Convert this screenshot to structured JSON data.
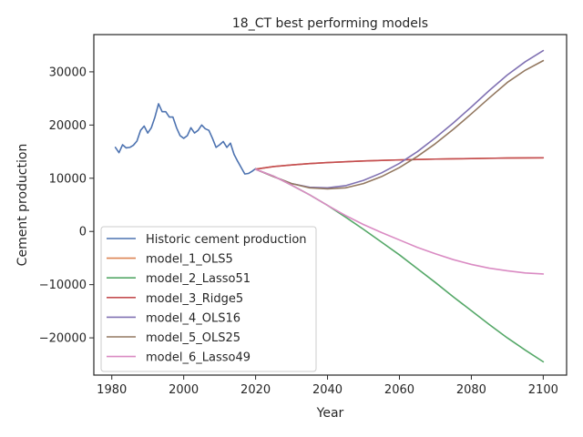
{
  "chart_data": {
    "type": "line",
    "title": "18_CT best performing models",
    "xlabel": "Year",
    "ylabel": "Cement production",
    "xlim": [
      1975,
      2106.5
    ],
    "ylim": [
      -27000,
      37000
    ],
    "xticks": [
      1980,
      2000,
      2020,
      2040,
      2060,
      2080,
      2100
    ],
    "yticks": [
      -20000,
      -10000,
      0,
      10000,
      20000,
      30000
    ],
    "xtick_labels": [
      "1980",
      "2000",
      "2020",
      "2040",
      "2060",
      "2080",
      "2100"
    ],
    "ytick_labels": [
      "−20000",
      "−10000",
      "0",
      "10000",
      "20000",
      "30000"
    ],
    "grid": false,
    "legend_position": "lower-left",
    "series": [
      {
        "name": "Historic cement production",
        "color": "#4c72b0",
        "x": [
          1981,
          1982,
          1983,
          1984,
          1985,
          1986,
          1987,
          1988,
          1989,
          1990,
          1991,
          1992,
          1993,
          1994,
          1995,
          1996,
          1997,
          1998,
          1999,
          2000,
          2001,
          2002,
          2003,
          2004,
          2005,
          2006,
          2007,
          2008,
          2009,
          2010,
          2011,
          2012,
          2013,
          2014,
          2015,
          2016,
          2017,
          2018,
          2019,
          2020
        ],
        "y": [
          15800,
          14800,
          16300,
          15700,
          15800,
          16200,
          17000,
          19000,
          19800,
          18500,
          19500,
          21500,
          24000,
          22500,
          22500,
          21500,
          21500,
          19500,
          18000,
          17500,
          18000,
          19500,
          18500,
          19000,
          20000,
          19300,
          19000,
          17500,
          15800,
          16300,
          16900,
          15800,
          16600,
          14500,
          13200,
          12000,
          10800,
          10900,
          11300,
          11800
        ]
      },
      {
        "name": "model_1_OLS5",
        "color": "#dd8452",
        "x": [
          2020,
          2025,
          2030,
          2035,
          2040,
          2045,
          2050,
          2055,
          2060,
          2065,
          2070,
          2075,
          2080,
          2085,
          2090,
          2095,
          2100
        ],
        "y": [
          11700,
          12200,
          12500,
          12750,
          12950,
          13100,
          13250,
          13350,
          13450,
          13530,
          13600,
          13650,
          13700,
          13750,
          13800,
          13830,
          13850
        ]
      },
      {
        "name": "model_2_Lasso51",
        "color": "#55a868",
        "x": [
          2020,
          2025,
          2030,
          2035,
          2040,
          2045,
          2050,
          2055,
          2060,
          2065,
          2070,
          2075,
          2080,
          2085,
          2090,
          2095,
          2100
        ],
        "y": [
          11700,
          10400,
          8700,
          6900,
          4900,
          2700,
          400,
          -2000,
          -4400,
          -7000,
          -9600,
          -12300,
          -14900,
          -17500,
          -20000,
          -22300,
          -24500
        ]
      },
      {
        "name": "model_3_Ridge5",
        "color": "#c44e52",
        "x": [
          2020,
          2025,
          2030,
          2035,
          2040,
          2045,
          2050,
          2055,
          2060,
          2065,
          2070,
          2075,
          2080,
          2085,
          2090,
          2095,
          2100
        ],
        "y": [
          11700,
          12200,
          12500,
          12750,
          12950,
          13100,
          13250,
          13350,
          13450,
          13530,
          13600,
          13650,
          13700,
          13750,
          13800,
          13830,
          13850
        ]
      },
      {
        "name": "model_4_OLS16",
        "color": "#8172b3",
        "x": [
          2020,
          2025,
          2030,
          2035,
          2040,
          2045,
          2050,
          2055,
          2060,
          2065,
          2070,
          2075,
          2080,
          2085,
          2090,
          2095,
          2100
        ],
        "y": [
          11700,
          10300,
          9000,
          8300,
          8200,
          8600,
          9600,
          11000,
          12800,
          15000,
          17600,
          20400,
          23400,
          26500,
          29400,
          31900,
          34000
        ]
      },
      {
        "name": "model_5_OLS25",
        "color": "#937860",
        "x": [
          2020,
          2025,
          2030,
          2035,
          2040,
          2045,
          2050,
          2055,
          2060,
          2065,
          2070,
          2075,
          2080,
          2085,
          2090,
          2095,
          2100
        ],
        "y": [
          11700,
          10300,
          9000,
          8200,
          8000,
          8200,
          9000,
          10300,
          12000,
          14100,
          16500,
          19200,
          22100,
          25100,
          28000,
          30300,
          32100
        ]
      },
      {
        "name": "model_6_Lasso49",
        "color": "#da8bc3",
        "x": [
          2020,
          2025,
          2030,
          2035,
          2040,
          2045,
          2050,
          2055,
          2060,
          2065,
          2070,
          2075,
          2080,
          2085,
          2090,
          2095,
          2100
        ],
        "y": [
          11700,
          10400,
          8700,
          6900,
          4900,
          3000,
          1300,
          -200,
          -1600,
          -3000,
          -4200,
          -5300,
          -6200,
          -6900,
          -7400,
          -7800,
          -8000
        ]
      }
    ]
  }
}
